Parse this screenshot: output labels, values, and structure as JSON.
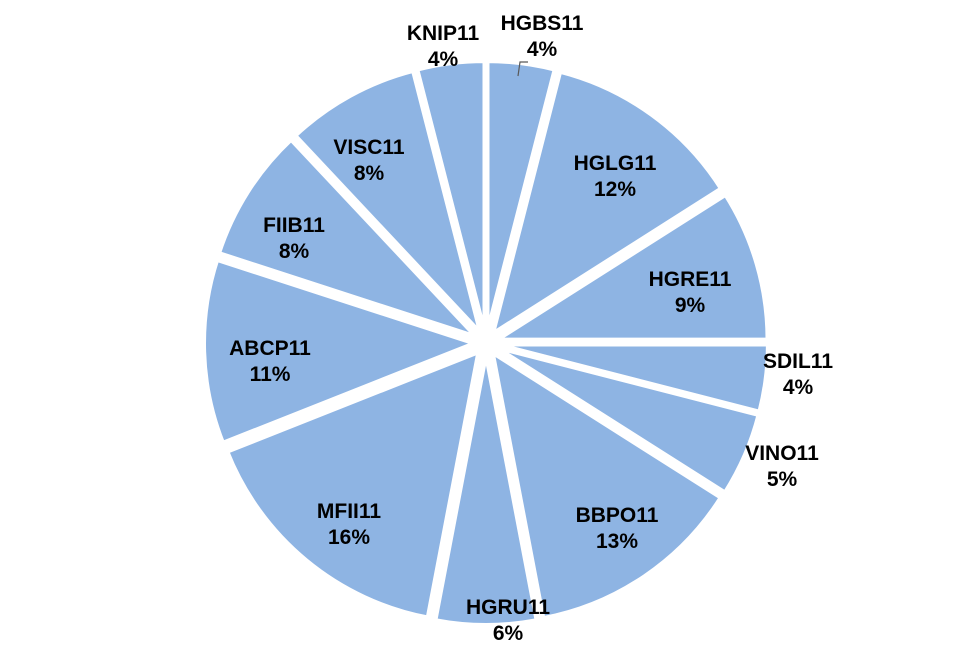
{
  "chart_data": {
    "type": "pie",
    "title": "",
    "colors": {
      "slice_fill": "#8eb4e3",
      "slice_stroke": "#ffffff",
      "label_text": "#000000",
      "leader_line": "#595959"
    },
    "legend": "none",
    "slices": [
      {
        "label": "HGBS11",
        "value": 4,
        "display": "4%"
      },
      {
        "label": "HGLG11",
        "value": 12,
        "display": "12%"
      },
      {
        "label": "HGRE11",
        "value": 9,
        "display": "9%"
      },
      {
        "label": "SDIL11",
        "value": 4,
        "display": "4%"
      },
      {
        "label": "VINO11",
        "value": 5,
        "display": "5%"
      },
      {
        "label": "BBPO11",
        "value": 13,
        "display": "13%"
      },
      {
        "label": "HGRU11",
        "value": 6,
        "display": "6%"
      },
      {
        "label": "MFII11",
        "value": 16,
        "display": "16%"
      },
      {
        "label": "ABCP11",
        "value": 11,
        "display": "11%"
      },
      {
        "label": "FIIB11",
        "value": 8,
        "display": "8%"
      },
      {
        "label": "VISC11",
        "value": 8,
        "display": "8%"
      },
      {
        "label": "KNIP11",
        "value": 4,
        "display": "4%"
      }
    ]
  }
}
